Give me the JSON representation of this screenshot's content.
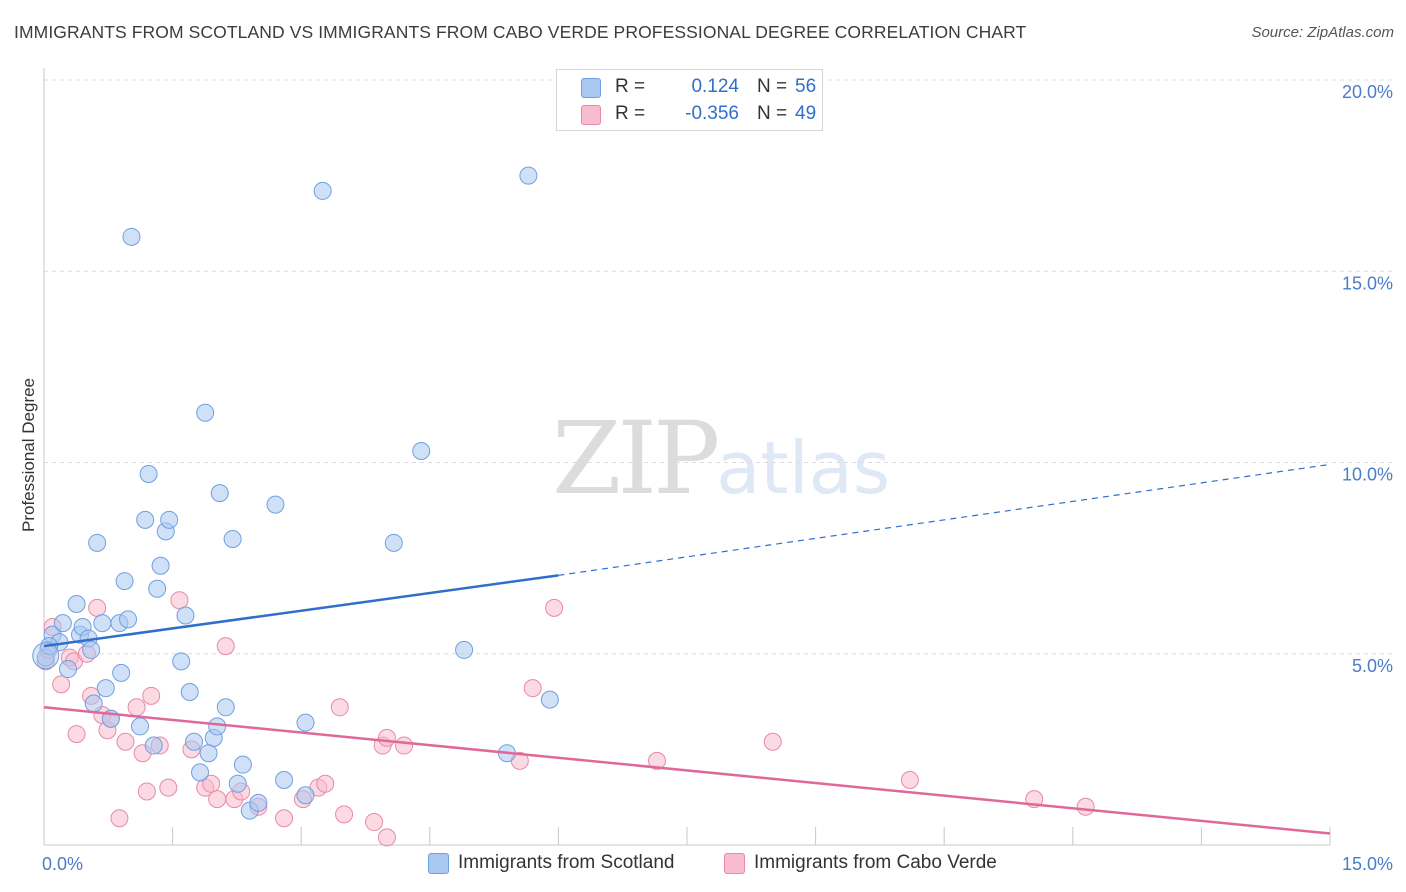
{
  "title": "IMMIGRANTS FROM SCOTLAND VS IMMIGRANTS FROM CABO VERDE PROFESSIONAL DEGREE CORRELATION CHART",
  "source": "Source: ZipAtlas.com",
  "watermark": {
    "zip": "ZIP",
    "atlas": "atlas"
  },
  "legend": {
    "rows": [
      {
        "r_label": "R =",
        "r_value": "0.124",
        "n_label": "N =",
        "n_value": "56",
        "color": "#a9c8f0"
      },
      {
        "r_label": "R =",
        "r_value": "-0.356",
        "n_label": "N =",
        "n_value": "49",
        "color": "#f7bccd"
      }
    ]
  },
  "bottom_legend": [
    {
      "label": "Immigrants from Scotland",
      "color": "#a9c8f0"
    },
    {
      "label": "Immigrants from Cabo Verde",
      "color": "#f7bccd"
    }
  ],
  "chart_data": {
    "type": "scatter",
    "xlabel": "",
    "ylabel": "Professional Degree",
    "xlim": [
      0,
      15
    ],
    "ylim": [
      0,
      20
    ],
    "x_tick_labels": [
      "0.0%",
      "15.0%"
    ],
    "y_ticks": [
      5,
      10,
      15,
      20
    ],
    "y_tick_labels": [
      "5.0%",
      "10.0%",
      "15.0%",
      "20.0%"
    ],
    "grid": true,
    "series": [
      {
        "name": "Immigrants from Scotland",
        "color": "#a9c8f0",
        "stroke": "#6fa0e0",
        "trend_color": "#2f6fcb",
        "trend": {
          "x0": 0,
          "y0": 5.2,
          "x1": 6.0,
          "y1": 7.05,
          "dashed_to_x": 15,
          "dashed_to_y": 9.95
        },
        "points": [
          [
            0.02,
            4.9
          ],
          [
            0.1,
            5.5
          ],
          [
            0.18,
            5.3
          ],
          [
            0.22,
            5.8
          ],
          [
            0.28,
            4.6
          ],
          [
            0.38,
            6.3
          ],
          [
            0.42,
            5.5
          ],
          [
            0.45,
            5.7
          ],
          [
            0.52,
            5.4
          ],
          [
            0.55,
            5.1
          ],
          [
            0.58,
            3.7
          ],
          [
            0.62,
            7.9
          ],
          [
            0.68,
            5.8
          ],
          [
            0.72,
            4.1
          ],
          [
            0.78,
            3.3
          ],
          [
            0.88,
            5.8
          ],
          [
            0.9,
            4.5
          ],
          [
            0.94,
            6.9
          ],
          [
            0.98,
            5.9
          ],
          [
            1.02,
            15.9
          ],
          [
            1.12,
            3.1
          ],
          [
            1.18,
            8.5
          ],
          [
            1.22,
            9.7
          ],
          [
            1.28,
            2.6
          ],
          [
            1.32,
            6.7
          ],
          [
            1.36,
            7.3
          ],
          [
            1.42,
            8.2
          ],
          [
            1.46,
            8.5
          ],
          [
            1.6,
            4.8
          ],
          [
            1.65,
            6.0
          ],
          [
            1.7,
            4.0
          ],
          [
            1.75,
            2.7
          ],
          [
            1.82,
            1.9
          ],
          [
            1.88,
            11.3
          ],
          [
            1.92,
            2.4
          ],
          [
            1.98,
            2.8
          ],
          [
            2.02,
            3.1
          ],
          [
            2.05,
            9.2
          ],
          [
            2.12,
            3.6
          ],
          [
            2.2,
            8.0
          ],
          [
            2.26,
            1.6
          ],
          [
            2.32,
            2.1
          ],
          [
            2.4,
            0.9
          ],
          [
            2.5,
            1.1
          ],
          [
            2.8,
            1.7
          ],
          [
            2.7,
            8.9
          ],
          [
            3.05,
            1.3
          ],
          [
            3.05,
            3.2
          ],
          [
            3.25,
            17.1
          ],
          [
            4.08,
            7.9
          ],
          [
            4.4,
            10.3
          ],
          [
            4.9,
            5.1
          ],
          [
            5.4,
            2.4
          ],
          [
            5.65,
            17.5
          ],
          [
            5.9,
            3.8
          ],
          [
            0.06,
            5.2
          ]
        ]
      },
      {
        "name": "Immigrants from Cabo Verde",
        "color": "#f7bccd",
        "stroke": "#e88aa7",
        "trend_color": "#e0679a",
        "trend": {
          "x0": 0,
          "y0": 3.6,
          "x1": 15.0,
          "y1": 0.3
        },
        "points": [
          [
            0.02,
            4.8
          ],
          [
            0.05,
            5.1
          ],
          [
            0.1,
            5.7
          ],
          [
            0.2,
            4.2
          ],
          [
            0.3,
            4.9
          ],
          [
            0.35,
            4.8
          ],
          [
            0.38,
            2.9
          ],
          [
            0.5,
            5.0
          ],
          [
            0.55,
            3.9
          ],
          [
            0.62,
            6.2
          ],
          [
            0.68,
            3.4
          ],
          [
            0.74,
            3.0
          ],
          [
            0.78,
            3.3
          ],
          [
            0.88,
            0.7
          ],
          [
            0.95,
            2.7
          ],
          [
            1.08,
            3.6
          ],
          [
            1.15,
            2.4
          ],
          [
            1.2,
            1.4
          ],
          [
            1.25,
            3.9
          ],
          [
            1.35,
            2.6
          ],
          [
            1.45,
            1.5
          ],
          [
            1.58,
            6.4
          ],
          [
            1.72,
            2.5
          ],
          [
            1.88,
            1.5
          ],
          [
            1.95,
            1.6
          ],
          [
            2.02,
            1.2
          ],
          [
            2.12,
            5.2
          ],
          [
            2.22,
            1.2
          ],
          [
            2.3,
            1.4
          ],
          [
            2.5,
            1.0
          ],
          [
            2.8,
            0.7
          ],
          [
            3.02,
            1.2
          ],
          [
            3.2,
            1.5
          ],
          [
            3.28,
            1.6
          ],
          [
            3.45,
            3.6
          ],
          [
            3.5,
            0.8
          ],
          [
            3.85,
            0.6
          ],
          [
            3.95,
            2.6
          ],
          [
            4.0,
            0.2
          ],
          [
            4.2,
            2.6
          ],
          [
            4.0,
            2.8
          ],
          [
            5.55,
            2.2
          ],
          [
            5.7,
            4.1
          ],
          [
            5.95,
            6.2
          ],
          [
            7.15,
            2.2
          ],
          [
            8.5,
            2.7
          ],
          [
            10.1,
            1.7
          ],
          [
            11.55,
            1.2
          ],
          [
            12.15,
            1.0
          ]
        ]
      }
    ]
  }
}
